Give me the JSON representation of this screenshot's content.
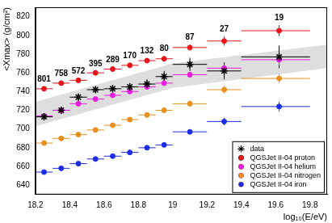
{
  "chart_data": {
    "type": "scatter",
    "x_label": "log₁₀(E/eV)",
    "y_label": "<Xmax> (g/cm²)",
    "xlim": [
      18.2,
      19.9
    ],
    "xticks": [
      18.2,
      18.4,
      18.6,
      18.8,
      19,
      19.2,
      19.4,
      19.6,
      19.8
    ],
    "ylim": [
      630,
      830
    ],
    "yticks": [
      640,
      660,
      680,
      700,
      720,
      740,
      760,
      780,
      800,
      820
    ],
    "grid": false,
    "legend": "lower right",
    "x": [
      18.25,
      18.35,
      18.45,
      18.55,
      18.65,
      18.75,
      18.85,
      18.95,
      19.1,
      19.3,
      19.62
    ],
    "bins": [
      18.2,
      18.3,
      18.4,
      18.5,
      18.6,
      18.7,
      18.8,
      18.9,
      19.0,
      19.2,
      19.4,
      19.8
    ],
    "events": [
      801,
      758,
      572,
      395,
      289,
      170,
      132,
      80,
      87,
      27,
      19
    ],
    "systematic_band": {
      "x": [
        18.2,
        19.0,
        19.9
      ],
      "low": [
        703,
        744,
        765
      ],
      "high": [
        729,
        770,
        790
      ]
    },
    "series": [
      {
        "name": "data",
        "color": "#000000",
        "marker": "star",
        "values": [
          713,
          720,
          734,
          742,
          743,
          745,
          748,
          756,
          769,
          762,
          777
        ],
        "yerr": [
          3,
          3,
          3,
          3,
          3,
          4,
          5,
          6,
          7,
          9,
          12
        ]
      },
      {
        "name": "QGSJet II-04 proton",
        "color": "#e8141b",
        "marker": "circle",
        "values": [
          743,
          749,
          752,
          760,
          764,
          768,
          773,
          775,
          787,
          794,
          805
        ],
        "yerr": [
          2,
          2,
          2,
          2,
          2,
          2,
          2,
          3,
          3,
          5,
          6
        ]
      },
      {
        "name": "QGSJet II-04 helium",
        "color": "#e81be0",
        "marker": "circle",
        "values": [
          714,
          720,
          727,
          732,
          736,
          740,
          745,
          749,
          758,
          765,
          774
        ],
        "yerr": [
          1,
          1,
          1,
          2,
          2,
          2,
          2,
          2,
          3,
          4,
          6
        ]
      },
      {
        "name": "QGSJet II-04 nitrogen",
        "color": "#e8901b",
        "marker": "circle",
        "values": [
          685,
          690,
          694,
          699,
          704,
          710,
          715,
          720,
          727,
          742,
          754
        ],
        "yerr": [
          1,
          1,
          1,
          1,
          1,
          2,
          2,
          2,
          3,
          4,
          5
        ]
      },
      {
        "name": "QGSJet II-04 iron",
        "color": "#1b2de8",
        "marker": "circle",
        "values": [
          654,
          658,
          663,
          668,
          671,
          675,
          680,
          683,
          697,
          708,
          724
        ],
        "yerr": [
          1,
          1,
          1,
          1,
          1,
          1,
          2,
          2,
          2,
          4,
          5
        ]
      }
    ]
  }
}
